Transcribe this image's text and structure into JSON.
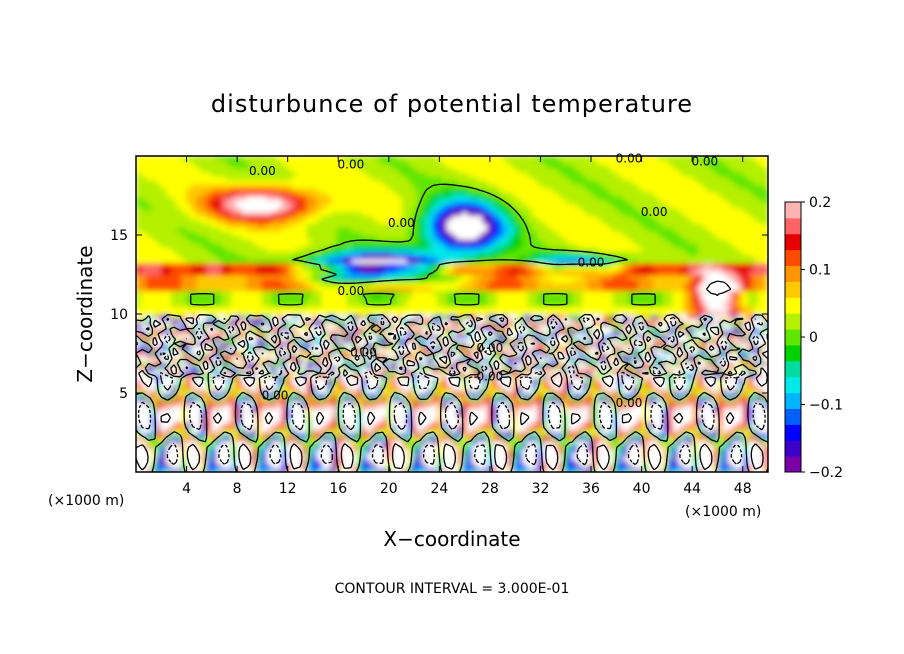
{
  "chart_data": {
    "type": "heatmap",
    "title": "disturbunce of potential temperature",
    "xlabel": "X−coordinate",
    "ylabel": "Z−coordinate",
    "x_unit": "(×1000 m)",
    "x_unit_right": "(×1000 m)",
    "xlim": [
      0,
      50
    ],
    "ylim": [
      0,
      20
    ],
    "x_ticks": [
      4,
      8,
      12,
      16,
      20,
      24,
      28,
      32,
      36,
      40,
      44,
      48
    ],
    "y_ticks": [
      5,
      10,
      15
    ],
    "colorbar": {
      "range": [
        -0.2,
        0.2
      ],
      "ticks": [
        "0.2",
        "0.1",
        "0",
        "−0.1",
        "−0.2"
      ],
      "colors": [
        "#7a00a8",
        "#3c00c8",
        "#0000ff",
        "#0060ff",
        "#00b4ff",
        "#00e8e8",
        "#00dca0",
        "#00d200",
        "#60e600",
        "#b4f000",
        "#ffff00",
        "#ffc800",
        "#ff9600",
        "#ff4b00",
        "#e60000",
        "#ff6464",
        "#ffb4b4"
      ]
    },
    "contour_labels": [
      "0.00",
      "0.00",
      "0.00",
      "0.00",
      "0.00",
      "0.00",
      "0.00",
      "0.00",
      "0.00",
      "0.00",
      "0.00",
      "0.00",
      "0.00"
    ],
    "contour_interval_text": "CONTOUR INTERVAL = 3.000E-01"
  }
}
